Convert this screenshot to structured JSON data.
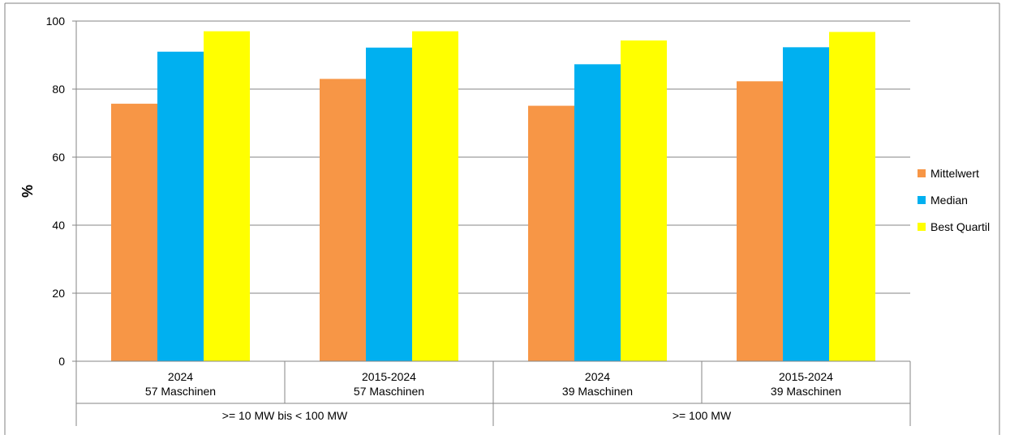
{
  "chart_data": {
    "type": "bar",
    "ylabel": "%",
    "ylim": [
      0,
      100
    ],
    "yticks": [
      0,
      20,
      40,
      60,
      80,
      100
    ],
    "grid": true,
    "legend_position": "right",
    "categories": [
      {
        "line1": "2024",
        "line2": "57 Maschinen"
      },
      {
        "line1": "2015-2024",
        "line2": "57 Maschinen"
      },
      {
        "line1": "2024",
        "line2": "39 Maschinen"
      },
      {
        "line1": "2015-2024",
        "line2": "39 Maschinen"
      }
    ],
    "groups": [
      {
        "label": ">= 10 MW bis < 100 MW",
        "span": [
          0,
          1
        ]
      },
      {
        "label": ">= 100 MW",
        "span": [
          2,
          3
        ]
      }
    ],
    "series": [
      {
        "name": "Mittelwert",
        "color": "#F79646",
        "values": [
          75.7,
          83.0,
          75.1,
          82.3
        ]
      },
      {
        "name": "Median",
        "color": "#00B0F0",
        "values": [
          91.0,
          92.2,
          87.3,
          92.3
        ]
      },
      {
        "name": "Best Quartil",
        "color": "#FFFF00",
        "values": [
          97.0,
          97.0,
          94.3,
          96.8
        ]
      }
    ]
  }
}
